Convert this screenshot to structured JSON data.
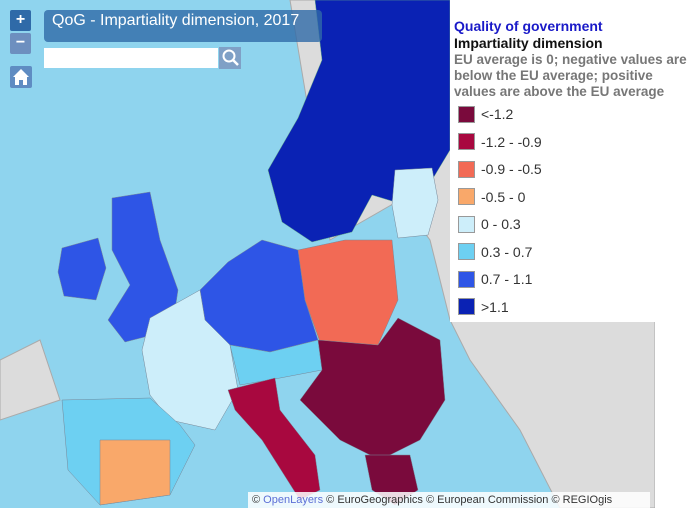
{
  "map": {
    "title": "QoG - Impartiality dimension, 2017",
    "search_placeholder": "",
    "zoom_in": "+",
    "zoom_out": "−",
    "icons": {
      "home": "home-icon",
      "search": "search-icon"
    },
    "colors": {
      "sea": "#8fd4ee",
      "land": "#dcdcdc"
    }
  },
  "legend": {
    "title": "Quality of government",
    "subtitle": "Impartiality dimension",
    "note": "EU average is 0; negative values are below the EU average; positive values are above the EU average",
    "classes": [
      {
        "label": "<-1.2",
        "color": "#7a0a3c"
      },
      {
        "label": "-1.2 - -0.9",
        "color": "#a8083f"
      },
      {
        "label": "-0.9 - -0.5",
        "color": "#f26a55"
      },
      {
        "label": "-0.5 - 0",
        "color": "#f9a86a"
      },
      {
        "label": "0 - 0.3",
        "color": "#cdeefa"
      },
      {
        "label": "0.3 - 0.7",
        "color": "#6dd0f2"
      },
      {
        "label": "0.7 - 1.1",
        "color": "#2e55e6"
      },
      {
        "label": ">1.1",
        "color": "#0a22b4"
      }
    ]
  },
  "attribution": {
    "c1": "© ",
    "link": "OpenLayers",
    "rest": " © EuroGeographics © European Commission © REGIOgis"
  }
}
